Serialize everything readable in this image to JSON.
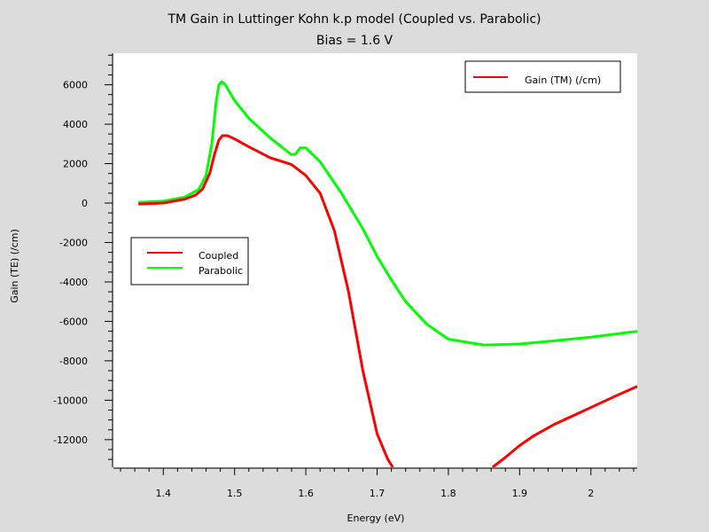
{
  "chart_data": {
    "type": "line",
    "title": "TM Gain in Luttinger Kohn k.p model (Coupled vs. Parabolic)",
    "subtitle": "Bias = 1.6 V",
    "xlabel": "Energy (eV)",
    "ylabel": "Gain (TE) (/cm)",
    "xlim": [
      1.33,
      2.065
    ],
    "ylim": [
      -13400,
      7600
    ],
    "x_ticks": [
      1.4,
      1.5,
      1.6,
      1.7,
      1.8,
      1.9,
      2.0
    ],
    "x_tick_labels": [
      "1.4",
      "1.5",
      "1.6",
      "1.7",
      "1.8",
      "1.9",
      "2"
    ],
    "y_ticks": [
      6000,
      4000,
      2000,
      0,
      -2000,
      -4000,
      -6000,
      -8000,
      -10000,
      -12000
    ],
    "y_tick_labels": [
      "6000",
      "4000",
      "2000",
      "0",
      "-2000",
      "-4000",
      "-6000",
      "-8000",
      "-10000",
      "-12000"
    ],
    "legend_top": {
      "label": "Gain (TM) (/cm)",
      "color": "#ff0000",
      "placement": "top-right"
    },
    "legend_main": {
      "placement": "middle-left",
      "entries": [
        {
          "label": "Coupled",
          "color": "#ff0000"
        },
        {
          "label": "Parabolic",
          "color": "#00ff00"
        }
      ]
    },
    "series": [
      {
        "name": "Coupled",
        "color": "#ff0000",
        "x": [
          1.365,
          1.4,
          1.43,
          1.445,
          1.455,
          1.465,
          1.472,
          1.478,
          1.483,
          1.49,
          1.5,
          1.52,
          1.55,
          1.58,
          1.6,
          1.62,
          1.64,
          1.66,
          1.68,
          1.7,
          1.715,
          1.722
        ],
        "y": [
          -50,
          0,
          200,
          400,
          700,
          1500,
          2500,
          3200,
          3420,
          3420,
          3250,
          2850,
          2300,
          1950,
          1400,
          500,
          -1400,
          -4500,
          -8500,
          -11700,
          -13000,
          -13400
        ],
        "x2": [
          1.862,
          1.88,
          1.9,
          1.92,
          1.95,
          1.98,
          2.01,
          2.04,
          2.065
        ],
        "y2": [
          -13400,
          -12900,
          -12300,
          -11800,
          -11200,
          -10700,
          -10200,
          -9700,
          -9300
        ]
      },
      {
        "name": "Parabolic",
        "color": "#00ff00",
        "x": [
          1.365,
          1.4,
          1.43,
          1.45,
          1.46,
          1.468,
          1.474,
          1.478,
          1.482,
          1.487,
          1.5,
          1.52,
          1.55,
          1.58,
          1.586,
          1.592,
          1.6,
          1.62,
          1.65,
          1.68,
          1.7,
          1.72,
          1.74,
          1.77,
          1.8,
          1.85,
          1.9,
          1.95,
          2.0,
          2.065
        ],
        "y": [
          30,
          100,
          300,
          700,
          1400,
          3000,
          5100,
          6000,
          6150,
          6000,
          5200,
          4300,
          3300,
          2450,
          2500,
          2800,
          2800,
          2100,
          500,
          -1300,
          -2700,
          -3900,
          -5000,
          -6150,
          -6900,
          -7200,
          -7150,
          -6980,
          -6800,
          -6500
        ]
      }
    ]
  }
}
